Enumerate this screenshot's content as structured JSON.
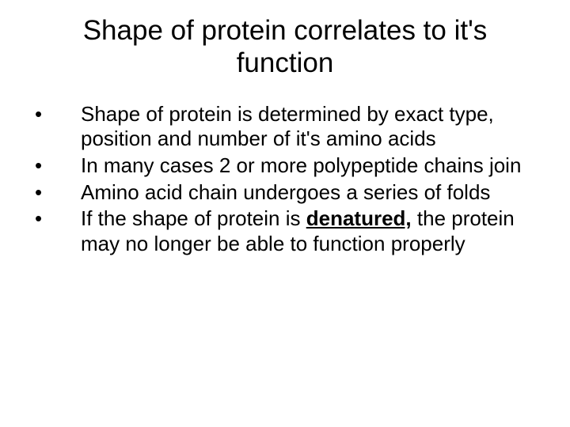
{
  "title": "Shape of protein correlates to it's function",
  "bullets": [
    {
      "marker": "•",
      "text_a": "Shape of protein is determined by exact type, position and number of it's amino acids"
    },
    {
      "marker": "•",
      "text_a": "In many cases 2 or more polypeptide chains join"
    },
    {
      "marker": "•",
      "text_a": "Amino acid chain undergoes a series of folds"
    },
    {
      "marker": "•",
      "text_a": "If the shape of protein is ",
      "emph": "denatured,",
      "text_b": " the protein may no longer be able to function properly"
    }
  ],
  "colors": {
    "background": "#ffffff",
    "text": "#000000"
  },
  "typography": {
    "title_fontsize": 35,
    "body_fontsize": 26,
    "font_family": "Arial"
  }
}
